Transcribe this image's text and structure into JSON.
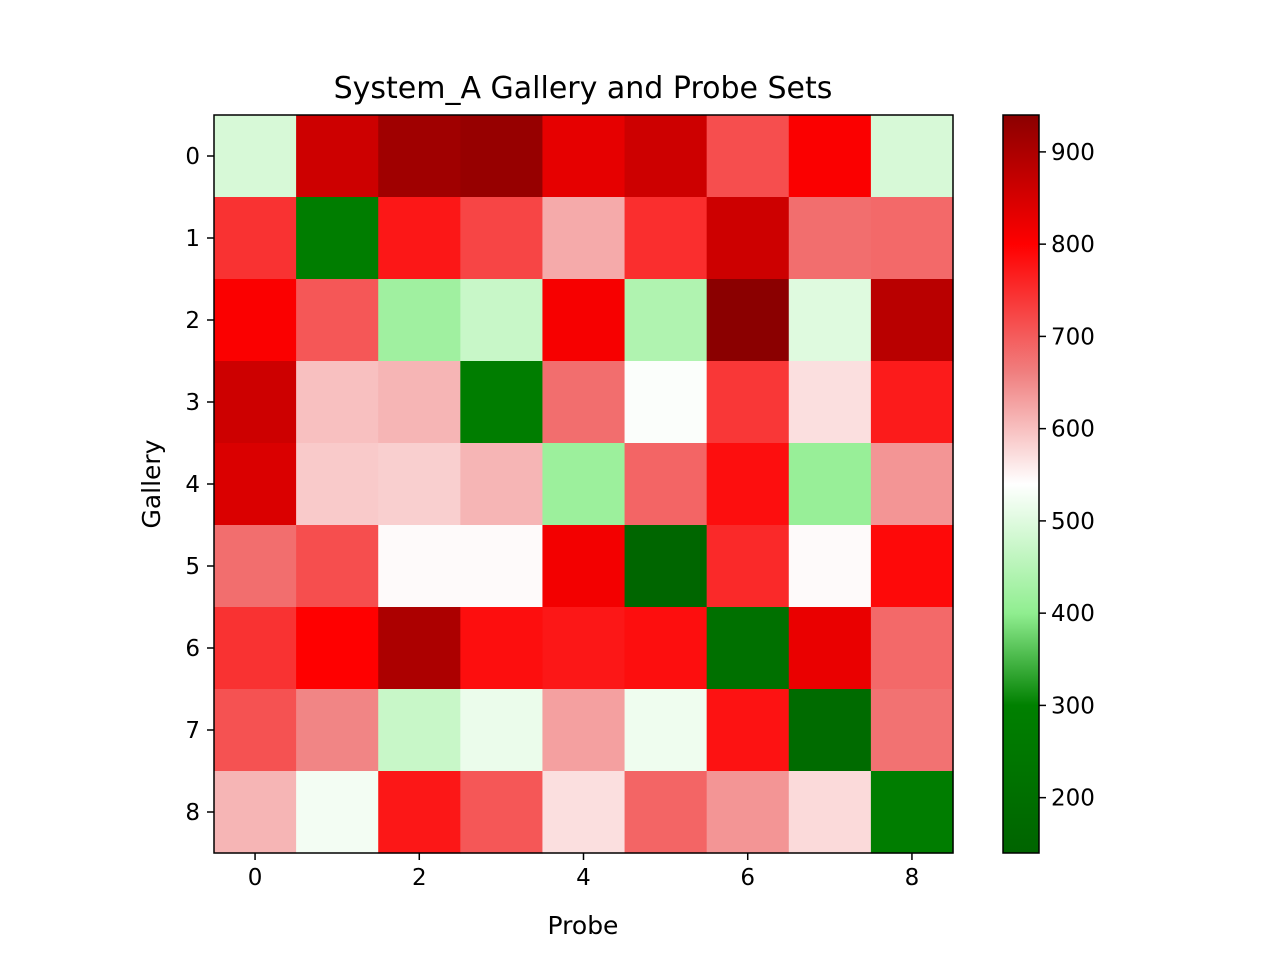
{
  "chart_data": {
    "type": "heatmap",
    "title": "System_A Gallery and Probe Sets",
    "xlabel": "Probe",
    "ylabel": "Gallery",
    "x_ticks": [
      "0",
      "2",
      "4",
      "6",
      "8"
    ],
    "y_ticks": [
      "0",
      "1",
      "2",
      "3",
      "4",
      "5",
      "6",
      "7",
      "8"
    ],
    "colorbar": {
      "range": [
        140,
        940
      ],
      "ticks": [
        "200",
        "300",
        "400",
        "500",
        "600",
        "700",
        "800",
        "900"
      ],
      "colormap": [
        {
          "value": 140,
          "color": "#006400"
        },
        {
          "value": 300,
          "color": "#008000"
        },
        {
          "value": 400,
          "color": "#90ee90"
        },
        {
          "value": 540,
          "color": "#ffffff"
        },
        {
          "value": 660,
          "color": "#f08080"
        },
        {
          "value": 800,
          "color": "#ff0000"
        },
        {
          "value": 940,
          "color": "#8b0000"
        }
      ]
    },
    "grid": false,
    "rows": [
      [
        490,
        860,
        915,
        925,
        830,
        860,
        715,
        805,
        490
      ],
      [
        745,
        285,
        775,
        725,
        620,
        750,
        860,
        680,
        685
      ],
      [
        805,
        705,
        420,
        470,
        810,
        440,
        940,
        500,
        885
      ],
      [
        860,
        600,
        610,
        280,
        680,
        535,
        740,
        570,
        770
      ],
      [
        845,
        590,
        585,
        610,
        415,
        690,
        785,
        410,
        640
      ],
      [
        680,
        715,
        545,
        545,
        815,
        150,
        755,
        545,
        790
      ],
      [
        745,
        800,
        900,
        785,
        775,
        785,
        210,
        825,
        685
      ],
      [
        710,
        655,
        470,
        515,
        630,
        520,
        780,
        180,
        675
      ],
      [
        610,
        525,
        775,
        705,
        570,
        690,
        640,
        575,
        285
      ]
    ]
  }
}
